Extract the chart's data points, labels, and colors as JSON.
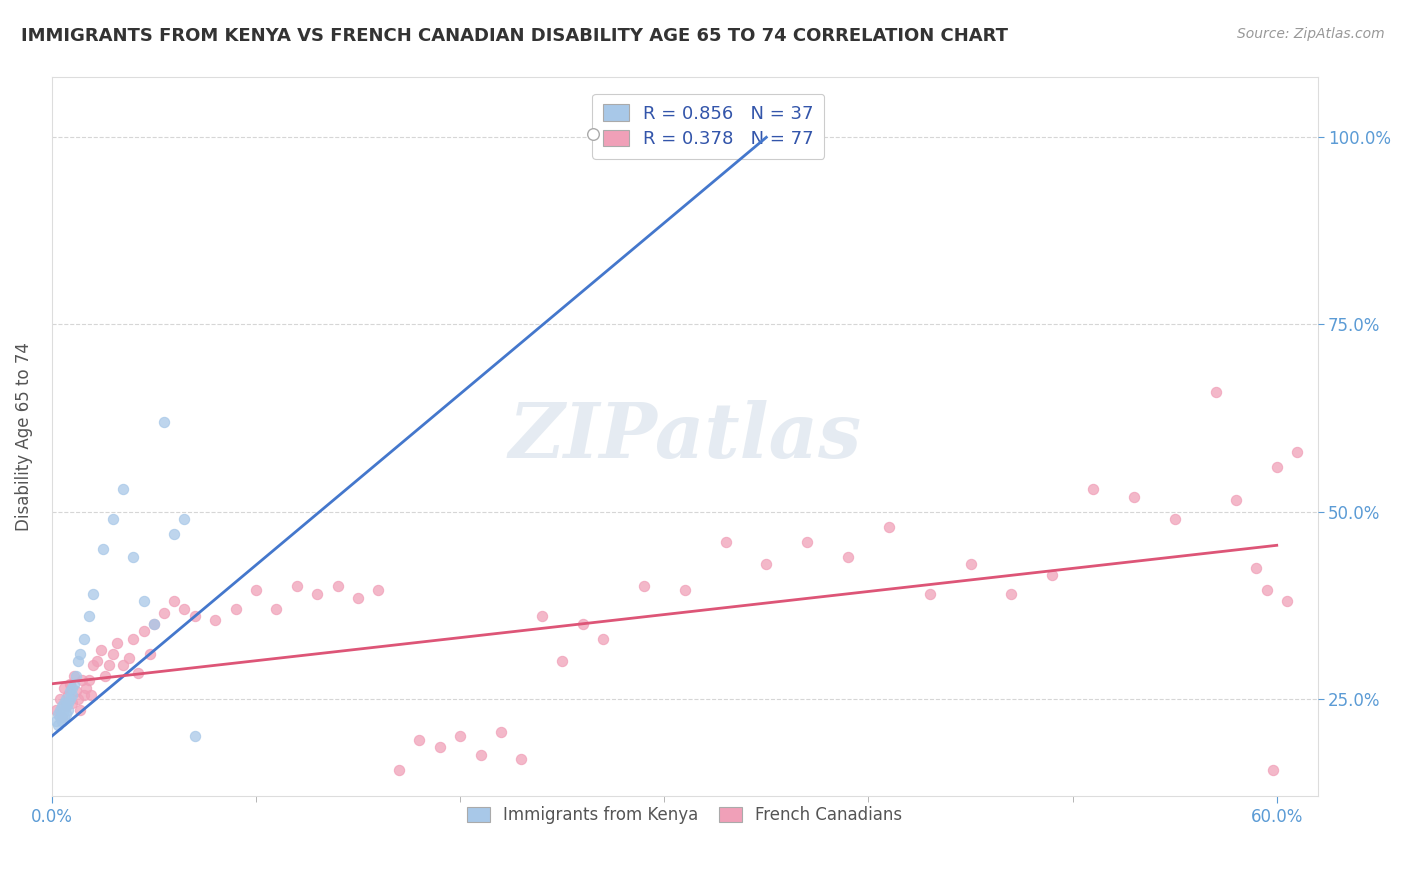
{
  "title": "IMMIGRANTS FROM KENYA VS FRENCH CANADIAN DISABILITY AGE 65 TO 74 CORRELATION CHART",
  "source": "Source: ZipAtlas.com",
  "ylabel": "Disability Age 65 to 74",
  "xlim": [
    0.0,
    0.62
  ],
  "ylim": [
    0.12,
    1.08
  ],
  "xticks": [
    0.0,
    0.6
  ],
  "xticklabels": [
    "0.0%",
    "60.0%"
  ],
  "yticks": [
    0.25,
    0.5,
    0.75,
    1.0
  ],
  "yticklabels": [
    "25.0%",
    "50.0%",
    "75.0%",
    "100.0%"
  ],
  "blue_R": 0.856,
  "blue_N": 37,
  "pink_R": 0.378,
  "pink_N": 77,
  "blue_color": "#A8C8E8",
  "pink_color": "#F0A0B8",
  "blue_line_color": "#4477CC",
  "pink_line_color": "#DD5577",
  "watermark": "ZIPatlas",
  "watermark_color": "#AABFD4",
  "background_color": "#FFFFFF",
  "grid_color": "#CCCCCC",
  "title_color": "#333333",
  "tick_color": "#5B9BD5",
  "legend_text_color": "#3355AA",
  "blue_scatter_x": [
    0.002,
    0.003,
    0.003,
    0.004,
    0.004,
    0.005,
    0.005,
    0.005,
    0.006,
    0.006,
    0.006,
    0.007,
    0.007,
    0.007,
    0.008,
    0.008,
    0.009,
    0.009,
    0.01,
    0.01,
    0.011,
    0.012,
    0.013,
    0.014,
    0.016,
    0.018,
    0.02,
    0.025,
    0.03,
    0.035,
    0.04,
    0.045,
    0.05,
    0.055,
    0.06,
    0.065,
    0.07
  ],
  "blue_scatter_y": [
    0.22,
    0.215,
    0.23,
    0.225,
    0.235,
    0.22,
    0.23,
    0.24,
    0.225,
    0.235,
    0.245,
    0.23,
    0.24,
    0.25,
    0.235,
    0.245,
    0.25,
    0.26,
    0.255,
    0.265,
    0.27,
    0.28,
    0.3,
    0.31,
    0.33,
    0.36,
    0.39,
    0.45,
    0.49,
    0.53,
    0.44,
    0.38,
    0.35,
    0.62,
    0.47,
    0.49,
    0.2
  ],
  "pink_scatter_x": [
    0.002,
    0.004,
    0.005,
    0.006,
    0.007,
    0.008,
    0.009,
    0.01,
    0.011,
    0.012,
    0.013,
    0.014,
    0.015,
    0.016,
    0.017,
    0.018,
    0.019,
    0.02,
    0.022,
    0.024,
    0.026,
    0.028,
    0.03,
    0.032,
    0.035,
    0.038,
    0.04,
    0.042,
    0.045,
    0.048,
    0.05,
    0.055,
    0.06,
    0.065,
    0.07,
    0.08,
    0.09,
    0.1,
    0.11,
    0.12,
    0.13,
    0.14,
    0.15,
    0.16,
    0.17,
    0.18,
    0.19,
    0.2,
    0.21,
    0.22,
    0.23,
    0.24,
    0.25,
    0.26,
    0.27,
    0.29,
    0.31,
    0.33,
    0.35,
    0.37,
    0.39,
    0.41,
    0.43,
    0.45,
    0.47,
    0.49,
    0.51,
    0.53,
    0.55,
    0.57,
    0.58,
    0.59,
    0.595,
    0.598,
    0.6,
    0.605,
    0.61
  ],
  "pink_scatter_y": [
    0.235,
    0.25,
    0.225,
    0.265,
    0.24,
    0.255,
    0.27,
    0.245,
    0.28,
    0.26,
    0.25,
    0.235,
    0.275,
    0.255,
    0.265,
    0.275,
    0.255,
    0.295,
    0.3,
    0.315,
    0.28,
    0.295,
    0.31,
    0.325,
    0.295,
    0.305,
    0.33,
    0.285,
    0.34,
    0.31,
    0.35,
    0.365,
    0.38,
    0.37,
    0.36,
    0.355,
    0.37,
    0.395,
    0.37,
    0.4,
    0.39,
    0.4,
    0.385,
    0.395,
    0.155,
    0.195,
    0.185,
    0.2,
    0.175,
    0.205,
    0.17,
    0.36,
    0.3,
    0.35,
    0.33,
    0.4,
    0.395,
    0.46,
    0.43,
    0.46,
    0.44,
    0.48,
    0.39,
    0.43,
    0.39,
    0.415,
    0.53,
    0.52,
    0.49,
    0.66,
    0.515,
    0.425,
    0.395,
    0.155,
    0.56,
    0.38,
    0.58
  ]
}
